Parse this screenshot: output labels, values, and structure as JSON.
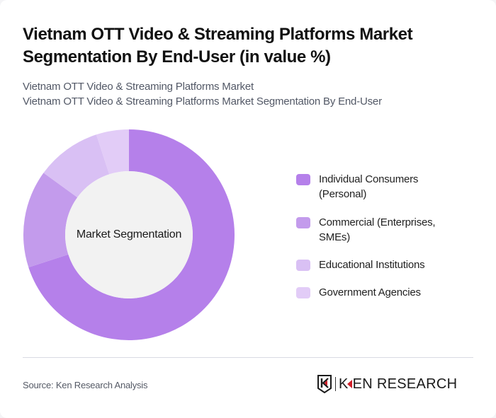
{
  "header": {
    "title": "Vietnam OTT Video & Streaming Platforms Market Segmentation By End-User (in value %)",
    "subtitle_line1": "Vietnam OTT Video & Streaming Platforms Market",
    "subtitle_line2": "Vietnam OTT Video & Streaming Platforms Market Segmentation By End-User"
  },
  "chart": {
    "center_label": "Market Segmentation"
  },
  "legend": {
    "items": [
      {
        "label": "Individual Consumers (Personal)",
        "color": "#B580EA"
      },
      {
        "label": "Commercial (Enterprises, SMEs)",
        "color": "#C39BEC"
      },
      {
        "label": "Educational Institutions",
        "color": "#D9C0F4"
      },
      {
        "label": "Government Agencies",
        "color": "#E2CCF7"
      }
    ]
  },
  "footer": {
    "source": "Source: Ken Research Analysis",
    "logo_text_k": "K",
    "logo_text_rest": "EN RESEARCH"
  },
  "chart_data": {
    "type": "pie",
    "subtype": "donut",
    "title": "Vietnam OTT Video & Streaming Platforms Market Segmentation By End-User (in value %)",
    "subtitle": "Vietnam OTT Video & Streaming Platforms Market / Vietnam OTT Video & Streaming Platforms Market Segmentation By End-User",
    "center_label": "Market Segmentation",
    "categories": [
      "Individual Consumers (Personal)",
      "Commercial (Enterprises, SMEs)",
      "Educational Institutions",
      "Government Agencies"
    ],
    "values": [
      70,
      15,
      10,
      5
    ],
    "unit": "%",
    "colors": [
      "#B580EA",
      "#C39BEC",
      "#D9C0F4",
      "#E2CCF7"
    ],
    "start_angle": "12 o'clock, clockwise",
    "legend_position": "right",
    "source": "Source: Ken Research Analysis"
  }
}
